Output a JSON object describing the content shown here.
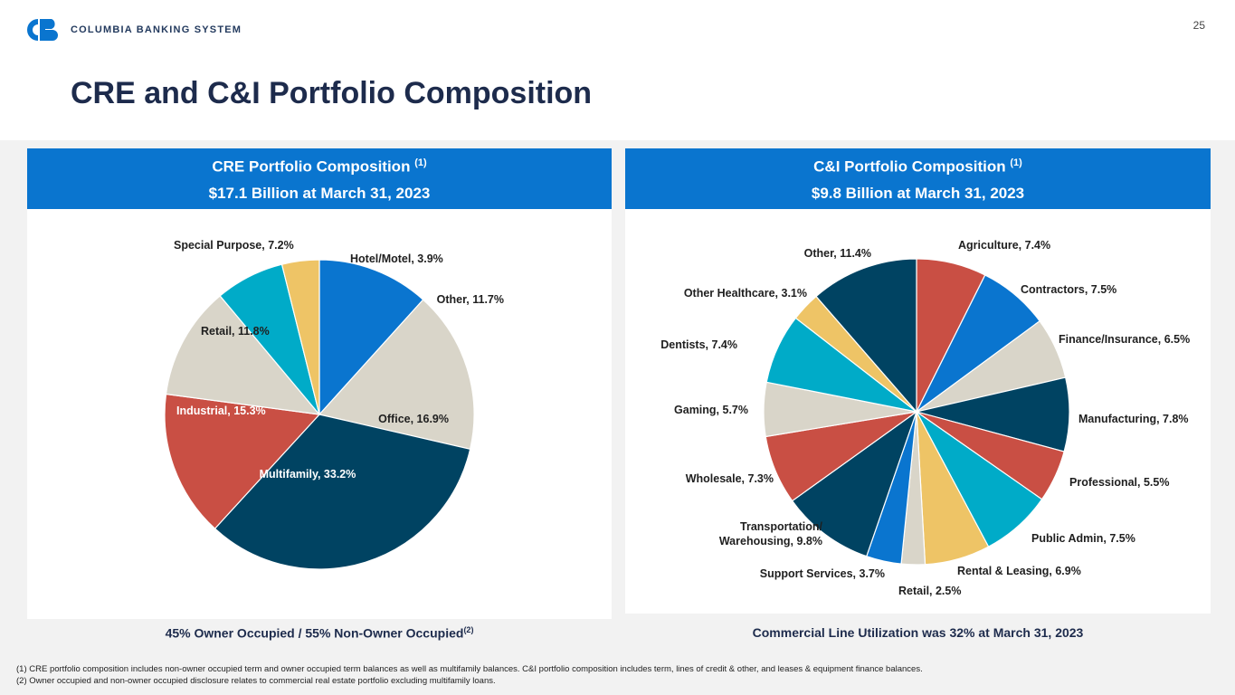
{
  "header": {
    "logo_text": "COLUMBIA BANKING SYSTEM",
    "page_number": "25",
    "brand_color": "#0a75cf"
  },
  "title": "CRE and C&I Portfolio Composition",
  "colors": {
    "navy": "#004362",
    "red": "#c94f44",
    "beige": "#d9d5c9",
    "teal": "#00abc8",
    "gold": "#eec466",
    "blue": "#0a75cf"
  },
  "cre": {
    "header_title": "CRE Portfolio Composition",
    "header_note": "(1)",
    "header_subtitle": "$17.1 Billion at March 31, 2023",
    "caption": "45% Owner Occupied / 55% Non-Owner Occupied",
    "caption_note": "(2)"
  },
  "ci": {
    "header_title": "C&I Portfolio Composition",
    "header_note": "(1)",
    "header_subtitle": "$9.8 Billion at March 31, 2023",
    "caption": "Commercial Line Utilization was 32% at March 31, 2023"
  },
  "chart_data": [
    {
      "type": "pie",
      "start_angle_deg": 0,
      "direction": "clockwise",
      "slices": [
        {
          "label": "Other",
          "value": 11.7,
          "text": "Other, 11.7%",
          "color": "#0a75cf"
        },
        {
          "label": "Office",
          "value": 16.9,
          "text": "Office, 16.9%",
          "color": "#d9d5c9"
        },
        {
          "label": "Multifamily",
          "value": 33.2,
          "text": "Multifamily, 33.2%",
          "color": "#004362"
        },
        {
          "label": "Industrial",
          "value": 15.3,
          "text": "Industrial, 15.3%",
          "color": "#c94f44"
        },
        {
          "label": "Retail",
          "value": 11.8,
          "text": "Retail, 11.8%",
          "color": "#d9d5c9"
        },
        {
          "label": "Special Purpose",
          "value": 7.2,
          "text": "Special Purpose, 7.2%",
          "color": "#00abc8"
        },
        {
          "label": "Hotel/Motel",
          "value": 3.9,
          "text": "Hotel/Motel, 3.9%",
          "color": "#eec466"
        }
      ]
    },
    {
      "type": "pie",
      "start_angle_deg": 0,
      "direction": "clockwise",
      "slices": [
        {
          "label": "Agriculture",
          "value": 7.4,
          "text": "Agriculture, 7.4%",
          "color": "#c94f44"
        },
        {
          "label": "Contractors",
          "value": 7.5,
          "text": "Contractors, 7.5%",
          "color": "#0a75cf"
        },
        {
          "label": "Finance/Insurance",
          "value": 6.5,
          "text": "Finance/Insurance, 6.5%",
          "color": "#d9d5c9"
        },
        {
          "label": "Manufacturing",
          "value": 7.8,
          "text": "Manufacturing, 7.8%",
          "color": "#004362"
        },
        {
          "label": "Professional",
          "value": 5.5,
          "text": "Professional, 5.5%",
          "color": "#c94f44"
        },
        {
          "label": "Public Admin",
          "value": 7.5,
          "text": "Public Admin, 7.5%",
          "color": "#00abc8"
        },
        {
          "label": "Rental & Leasing",
          "value": 6.9,
          "text": "Rental & Leasing, 6.9%",
          "color": "#eec466"
        },
        {
          "label": "Retail",
          "value": 2.5,
          "text": "Retail, 2.5%",
          "color": "#d9d5c9"
        },
        {
          "label": "Support Services",
          "value": 3.7,
          "text": "Support Services, 3.7%",
          "color": "#0a75cf"
        },
        {
          "label": "Transportation/ Warehousing",
          "value": 9.8,
          "text": "Transportation/",
          "text2": "Warehousing, 9.8%",
          "color": "#004362"
        },
        {
          "label": "Wholesale",
          "value": 7.3,
          "text": "Wholesale, 7.3%",
          "color": "#c94f44"
        },
        {
          "label": "Gaming",
          "value": 5.7,
          "text": "Gaming, 5.7%",
          "color": "#d9d5c9"
        },
        {
          "label": "Dentists",
          "value": 7.4,
          "text": "Dentists, 7.4%",
          "color": "#00abc8"
        },
        {
          "label": "Other Healthcare",
          "value": 3.1,
          "text": "Other Healthcare, 3.1%",
          "color": "#eec466"
        },
        {
          "label": "Other",
          "value": 11.4,
          "text": "Other, 11.4%",
          "color": "#004362"
        }
      ]
    }
  ],
  "footnotes": [
    "(1) CRE portfolio composition includes non-owner occupied term and owner occupied term balances as well as multifamily balances. C&I portfolio composition includes term, lines of credit & other, and leases & equipment finance balances.",
    "(2) Owner occupied and non-owner occupied disclosure relates to commercial real estate portfolio excluding multifamily loans."
  ]
}
